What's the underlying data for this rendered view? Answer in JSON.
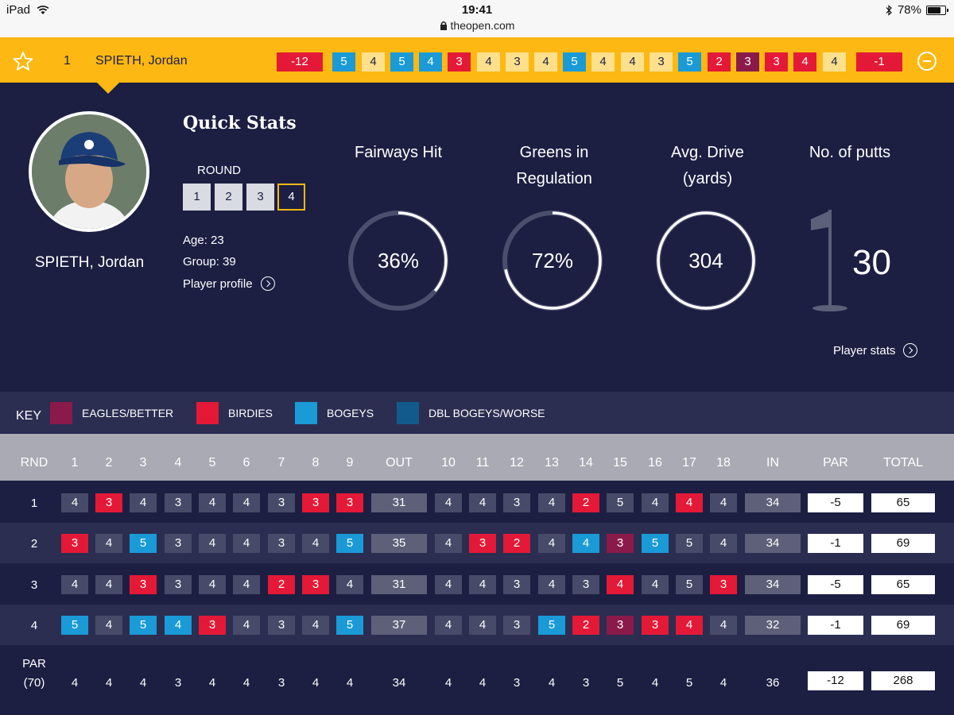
{
  "status_bar": {
    "device": "iPad",
    "time": "19:41",
    "url": "theopen.com",
    "battery": "78%",
    "battery_level": 0.78
  },
  "player_bar": {
    "position": "1",
    "name": "SPIETH, Jordan",
    "total_to_par": "-12",
    "holes": [
      "5",
      "4",
      "5",
      "4",
      "3",
      "4",
      "3",
      "4",
      "5",
      "4",
      "4",
      "3",
      "5",
      "2",
      "3",
      "3",
      "4",
      "4"
    ],
    "hole_types": [
      "bogey",
      "par",
      "bogey",
      "bogey",
      "birdie",
      "par",
      "par",
      "par",
      "bogey",
      "par",
      "par",
      "par",
      "bogey",
      "birdie",
      "eagle",
      "birdie",
      "birdie",
      "par"
    ],
    "round_to_par": "-1"
  },
  "quick_stats": {
    "title": "Quick Stats",
    "round_label": "ROUND",
    "rounds": [
      "1",
      "2",
      "3",
      "4"
    ],
    "selected_round": 3,
    "age": "Age: 23",
    "group": "Group: 39",
    "profile_link": "Player profile",
    "player_name": "SPIETH, Jordan",
    "stats": [
      {
        "label_lines": [
          "Fairways Hit"
        ],
        "value": "36%",
        "fraction": 0.36
      },
      {
        "label_lines": [
          "Greens in",
          "Regulation"
        ],
        "value": "72%",
        "fraction": 0.72
      },
      {
        "label_lines": [
          "Avg. Drive",
          "(yards)"
        ],
        "value": "304",
        "fraction": 1.0
      }
    ],
    "putts_label": "No. of putts",
    "putts_value": "30",
    "stats_link": "Player stats"
  },
  "key": {
    "title": "KEY",
    "items": [
      {
        "label": "EAGLES/BETTER",
        "color": "#8a1a4a"
      },
      {
        "label": "BIRDIES",
        "color": "#e31937"
      },
      {
        "label": "BOGEYS",
        "color": "#1a9ad6"
      },
      {
        "label": "DBL BOGEYS/WORSE",
        "color": "#135a8c"
      }
    ]
  },
  "colors": {
    "eagle": "#8a1a4a",
    "birdie": "#e31937",
    "bogey": "#1a9ad6",
    "double": "#135a8c",
    "par": "#474a68",
    "subtotal": "#5e6079",
    "yellow": "#fdb813",
    "par_cell_on_yellow": "#fde08c"
  },
  "scorecard": {
    "headers": [
      "RND",
      "1",
      "2",
      "3",
      "4",
      "5",
      "6",
      "7",
      "8",
      "9",
      "OUT",
      "10",
      "11",
      "12",
      "13",
      "14",
      "15",
      "16",
      "17",
      "18",
      "IN",
      "PAR",
      "TOTAL"
    ],
    "rounds": [
      {
        "rnd": "1",
        "holes": [
          "4",
          "3",
          "4",
          "3",
          "4",
          "4",
          "3",
          "3",
          "3",
          "4",
          "4",
          "3",
          "4",
          "2",
          "5",
          "4",
          "4",
          "4"
        ],
        "types": [
          "par",
          "birdie",
          "par",
          "par",
          "par",
          "par",
          "par",
          "birdie",
          "birdie",
          "par",
          "par",
          "par",
          "par",
          "birdie",
          "par",
          "par",
          "birdie",
          "par"
        ],
        "out": "31",
        "in": "34",
        "par": "-5",
        "total": "65"
      },
      {
        "rnd": "2",
        "holes": [
          "3",
          "4",
          "5",
          "3",
          "4",
          "4",
          "3",
          "4",
          "5",
          "4",
          "3",
          "2",
          "4",
          "4",
          "3",
          "5",
          "5",
          "4"
        ],
        "types": [
          "birdie",
          "par",
          "bogey",
          "par",
          "par",
          "par",
          "par",
          "par",
          "bogey",
          "par",
          "birdie",
          "birdie",
          "par",
          "bogey",
          "eagle",
          "bogey",
          "par",
          "par"
        ],
        "out": "35",
        "in": "34",
        "par": "-1",
        "total": "69"
      },
      {
        "rnd": "3",
        "holes": [
          "4",
          "4",
          "3",
          "3",
          "4",
          "4",
          "2",
          "3",
          "4",
          "4",
          "4",
          "3",
          "4",
          "3",
          "4",
          "4",
          "5",
          "3"
        ],
        "types": [
          "par",
          "par",
          "birdie",
          "par",
          "par",
          "par",
          "birdie",
          "birdie",
          "par",
          "par",
          "par",
          "par",
          "par",
          "par",
          "birdie",
          "par",
          "par",
          "birdie"
        ],
        "out": "31",
        "in": "34",
        "par": "-5",
        "total": "65"
      },
      {
        "rnd": "4",
        "holes": [
          "5",
          "4",
          "5",
          "4",
          "3",
          "4",
          "3",
          "4",
          "5",
          "4",
          "4",
          "3",
          "5",
          "2",
          "3",
          "3",
          "4",
          "4"
        ],
        "types": [
          "bogey",
          "par",
          "bogey",
          "bogey",
          "birdie",
          "par",
          "par",
          "par",
          "bogey",
          "par",
          "par",
          "par",
          "bogey",
          "birdie",
          "eagle",
          "birdie",
          "birdie",
          "par"
        ],
        "out": "37",
        "in": "32",
        "par": "-1",
        "total": "69"
      }
    ],
    "par_row": {
      "label_top": "PAR",
      "label_bottom": "(70)",
      "holes": [
        "4",
        "4",
        "4",
        "3",
        "4",
        "4",
        "3",
        "4",
        "4",
        "4",
        "4",
        "3",
        "4",
        "3",
        "5",
        "4",
        "5",
        "4"
      ],
      "out": "34",
      "in": "36",
      "par": "-12",
      "total": "268"
    }
  }
}
